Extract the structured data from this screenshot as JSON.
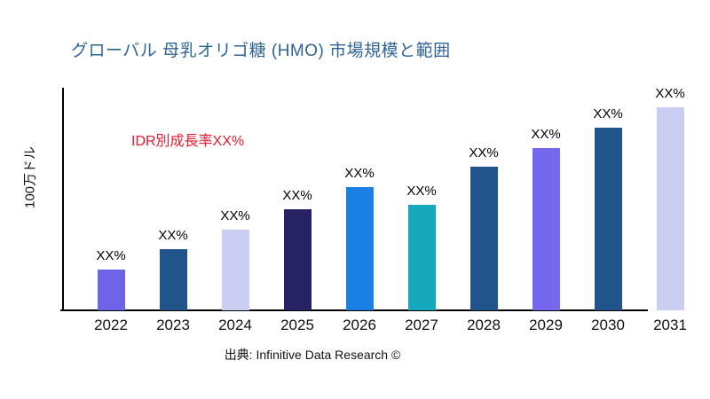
{
  "title": {
    "text": "グローバル 母乳オリゴ糖 (HMO) 市場規模と範囲",
    "color": "#2E6496"
  },
  "annotation": {
    "text": "IDR別成長率XX%",
    "color": "#E8192C"
  },
  "y_axis_label": "100万ドル",
  "source": "出典: Infinitive Data Research ©",
  "chart_data": {
    "type": "bar",
    "title": "グローバル 母乳オリゴ糖 (HMO) 市場規模と範囲",
    "xlabel": "",
    "ylabel": "100万ドル",
    "legend": false,
    "grid": false,
    "categories": [
      "2022",
      "2023",
      "2024",
      "2025",
      "2026",
      "2027",
      "2028",
      "2029",
      "2030",
      "2031"
    ],
    "value_labels": [
      "XX%",
      "XX%",
      "XX%",
      "XX%",
      "XX%",
      "XX%",
      "XX%",
      "XX%",
      "XX%",
      "XX%"
    ],
    "values_relative_pct_of_plot_height": [
      18.3,
      27.5,
      36.3,
      45.4,
      55.0,
      47.4,
      64.1,
      72.5,
      81.7,
      90.8
    ],
    "bar_colors": [
      "#6F63E8",
      "#20548A",
      "#C9CEF2",
      "#272264",
      "#1B80E4",
      "#16A9BE",
      "#20548A",
      "#7668EE",
      "#20548A",
      "#C9CEF2"
    ],
    "annotation": "IDR別成長率XX%",
    "source": "出典: Infinitive Data Research ©"
  }
}
